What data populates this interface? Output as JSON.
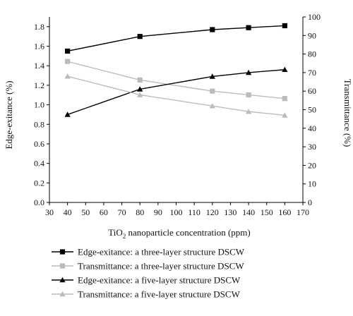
{
  "chart_data": {
    "type": "line",
    "xlabel_parts": [
      "TiO",
      "2",
      " nanoparticle concentration (ppm)"
    ],
    "ylabel_left": "Edge-exitance (%)",
    "ylabel_right": "Transmittance (%)",
    "xlim": [
      30,
      170
    ],
    "x_ticks": [
      30,
      40,
      50,
      60,
      70,
      80,
      90,
      100,
      110,
      120,
      130,
      140,
      150,
      160,
      170
    ],
    "ylim_left": [
      0,
      1.9
    ],
    "y_ticks_left": [
      "0.0",
      "0.2",
      "0.4",
      "0.6",
      "0.8",
      "1.0",
      "1.2",
      "1.4",
      "1.6",
      "1.8"
    ],
    "ylim_right": [
      0,
      100
    ],
    "y_ticks_right": [
      0,
      10,
      20,
      30,
      40,
      50,
      60,
      70,
      80,
      90,
      100
    ],
    "grid": false,
    "legend_position": "bottom",
    "series": [
      {
        "name": "Edge-exitance: a three-layer structure DSCW",
        "axis": "left",
        "marker": "square",
        "color": "#000000",
        "x": [
          40,
          80,
          120,
          140,
          160
        ],
        "values": [
          1.55,
          1.7,
          1.77,
          1.79,
          1.81
        ]
      },
      {
        "name": "Transmittance: a three-layer structure DSCW",
        "axis": "right",
        "marker": "square",
        "color": "#bbbbbb",
        "x": [
          40,
          80,
          120,
          140,
          160
        ],
        "values": [
          76,
          66,
          60,
          58,
          56
        ]
      },
      {
        "name": "Edge-exitance: a five-layer structure DSCW",
        "axis": "left",
        "marker": "triangle",
        "color": "#000000",
        "x": [
          40,
          80,
          120,
          140,
          160
        ],
        "values": [
          0.9,
          1.16,
          1.29,
          1.33,
          1.36
        ]
      },
      {
        "name": "Transmittance: a five-layer structure DSCW",
        "axis": "right",
        "marker": "triangle",
        "color": "#bbbbbb",
        "x": [
          40,
          80,
          120,
          140,
          160
        ],
        "values": [
          68,
          58,
          52,
          49,
          47
        ]
      }
    ]
  }
}
